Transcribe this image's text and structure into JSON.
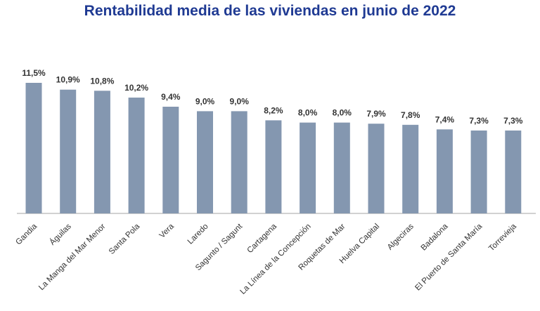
{
  "chart_data": {
    "type": "bar",
    "title": "Rentabilidad media de las viviendas en junio de 2022",
    "categories": [
      "Gandia",
      "Águilas",
      "La Manga del Mar Menor",
      "Santa Pola",
      "Vera",
      "Laredo",
      "Sagunto / Sagunt",
      "Cartagena",
      "La Línea de la Concepción",
      "Roquetas de Mar",
      "Huelva Capital",
      "Algeciras",
      "Badalona",
      "El Puerto de Santa María",
      "Torrevieja"
    ],
    "values": [
      11.5,
      10.9,
      10.8,
      10.2,
      9.4,
      9.0,
      9.0,
      8.2,
      8.0,
      8.0,
      7.9,
      7.8,
      7.4,
      7.3,
      7.3
    ],
    "data_labels": [
      "11,5%",
      "10,9%",
      "10,8%",
      "10,2%",
      "9,4%",
      "9,0%",
      "9,0%",
      "8,2%",
      "8,0%",
      "8,0%",
      "7,9%",
      "7,8%",
      "7,4%",
      "7,3%",
      "7,3%"
    ],
    "xlabel": "",
    "ylabel": "",
    "ylim": [
      0,
      11.5
    ],
    "grid": false,
    "legend": "none",
    "bar_color": "#8497b0",
    "title_color": "#1f3a93"
  }
}
